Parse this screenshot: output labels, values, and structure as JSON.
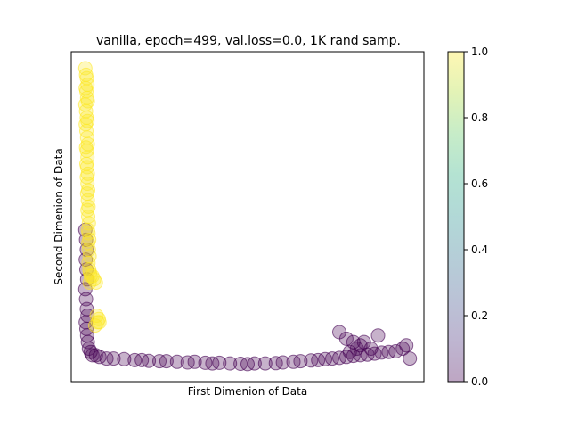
{
  "chart_data": {
    "type": "scatter",
    "title": "vanilla, epoch=499, val.loss=0.0, 1K rand samp.",
    "xlabel": "First Dimenion of Data",
    "ylabel": "Second Dimenion of Data",
    "xlim": [
      0,
      1
    ],
    "ylim": [
      0,
      1
    ],
    "x_ticks_visible": false,
    "y_ticks_visible": false,
    "grid": false,
    "colorbar": {
      "colormap": "viridis",
      "range": [
        0.0,
        1.0
      ],
      "ticks": [
        "0.0",
        "0.2",
        "0.4",
        "0.6",
        "0.8",
        "1.0"
      ]
    },
    "marker_alpha": 0.3,
    "colors": {
      "class_1": "#fde725",
      "class_0": "#440154"
    },
    "series": [
      {
        "color_value": 1.0,
        "x": [
          0.04,
          0.042,
          0.044,
          0.046,
          0.041,
          0.043,
          0.045,
          0.047,
          0.04,
          0.042,
          0.044,
          0.046,
          0.041,
          0.043,
          0.045,
          0.047,
          0.042,
          0.044,
          0.046,
          0.043,
          0.045,
          0.047,
          0.044,
          0.046,
          0.048,
          0.045,
          0.047,
          0.049,
          0.046,
          0.048,
          0.05,
          0.047,
          0.049,
          0.051,
          0.048,
          0.05,
          0.052,
          0.049,
          0.051,
          0.053,
          0.055,
          0.052,
          0.06,
          0.065,
          0.07,
          0.075,
          0.072,
          0.068,
          0.078,
          0.08
        ],
        "y": [
          0.95,
          0.93,
          0.92,
          0.9,
          0.89,
          0.88,
          0.86,
          0.85,
          0.84,
          0.82,
          0.8,
          0.79,
          0.78,
          0.76,
          0.74,
          0.72,
          0.71,
          0.7,
          0.68,
          0.66,
          0.65,
          0.63,
          0.62,
          0.6,
          0.58,
          0.57,
          0.55,
          0.53,
          0.52,
          0.5,
          0.48,
          0.46,
          0.45,
          0.43,
          0.42,
          0.4,
          0.38,
          0.36,
          0.34,
          0.33,
          0.32,
          0.3,
          0.32,
          0.31,
          0.3,
          0.18,
          0.2,
          0.17,
          0.19,
          0.18
        ]
      },
      {
        "color_value": 0.0,
        "x": [
          0.04,
          0.042,
          0.044,
          0.041,
          0.043,
          0.045,
          0.04,
          0.042,
          0.044,
          0.046,
          0.041,
          0.043,
          0.045,
          0.047,
          0.05,
          0.055,
          0.06,
          0.07,
          0.08,
          0.1,
          0.12,
          0.15,
          0.18,
          0.2,
          0.22,
          0.25,
          0.27,
          0.3,
          0.33,
          0.35,
          0.38,
          0.4,
          0.42,
          0.45,
          0.48,
          0.5,
          0.52,
          0.55,
          0.58,
          0.6,
          0.63,
          0.65,
          0.68,
          0.7,
          0.72,
          0.74,
          0.76,
          0.78,
          0.8,
          0.82,
          0.84,
          0.86,
          0.88,
          0.9,
          0.92,
          0.94,
          0.95,
          0.96,
          0.76,
          0.78,
          0.8,
          0.82,
          0.85,
          0.87,
          0.83,
          0.81,
          0.79
        ],
        "y": [
          0.46,
          0.43,
          0.4,
          0.37,
          0.34,
          0.31,
          0.28,
          0.25,
          0.22,
          0.2,
          0.18,
          0.16,
          0.14,
          0.12,
          0.1,
          0.09,
          0.08,
          0.08,
          0.075,
          0.07,
          0.07,
          0.068,
          0.065,
          0.065,
          0.063,
          0.062,
          0.062,
          0.06,
          0.058,
          0.06,
          0.057,
          0.055,
          0.057,
          0.055,
          0.054,
          0.053,
          0.055,
          0.055,
          0.056,
          0.058,
          0.06,
          0.062,
          0.064,
          0.065,
          0.068,
          0.07,
          0.072,
          0.075,
          0.078,
          0.08,
          0.082,
          0.085,
          0.088,
          0.09,
          0.092,
          0.1,
          0.11,
          0.07,
          0.15,
          0.13,
          0.12,
          0.11,
          0.1,
          0.14,
          0.12,
          0.1,
          0.09
        ]
      }
    ]
  }
}
